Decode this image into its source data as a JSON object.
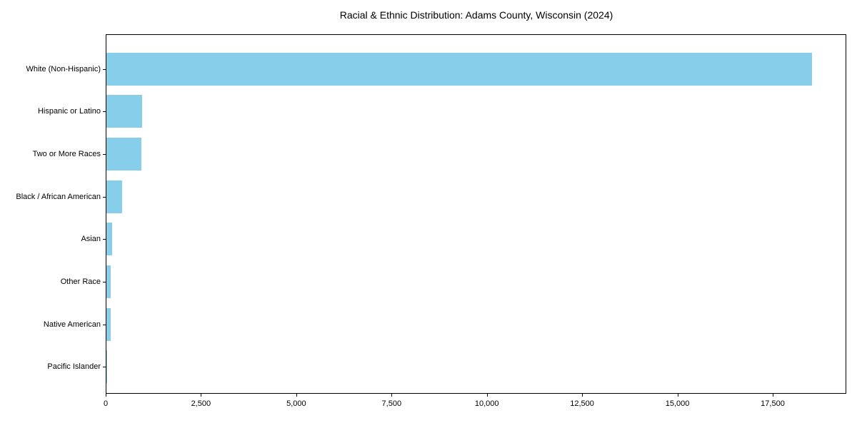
{
  "chart_data": {
    "type": "bar",
    "orientation": "horizontal",
    "title": "Racial & Ethnic Distribution: Adams County, Wisconsin (2024)",
    "categories": [
      "White (Non-Hispanic)",
      "Hispanic or Latino",
      "Two or More Races",
      "Black / African American",
      "Asian",
      "Other Race",
      "Native American",
      "Pacific Islander"
    ],
    "values": [
      18510,
      940,
      920,
      410,
      150,
      115,
      110,
      10
    ],
    "xlabel": "",
    "ylabel": "",
    "xlim": [
      0,
      19430
    ],
    "xticks": {
      "values": [
        0,
        2500,
        5000,
        7500,
        10000,
        12500,
        15000,
        17500
      ],
      "labels": [
        "0",
        "2,500",
        "5,000",
        "7,500",
        "10,000",
        "12,500",
        "15,000",
        "17,500"
      ]
    },
    "bar_color": "#87CEEB",
    "grid": false,
    "legend": false
  }
}
